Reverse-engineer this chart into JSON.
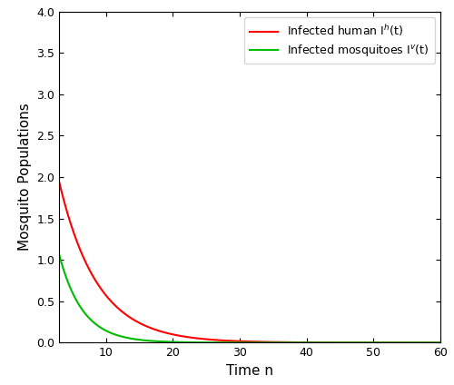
{
  "title": "",
  "xlabel": "Time n",
  "ylabel": "Mosquito Populations",
  "xlim": [
    3,
    60
  ],
  "ylim": [
    0,
    4
  ],
  "xticks": [
    10,
    20,
    30,
    40,
    50,
    60
  ],
  "yticks": [
    0,
    0.5,
    1.0,
    1.5,
    2.0,
    2.5,
    3.0,
    3.5,
    4.0
  ],
  "red_label": "Infected human I$^h$(t)",
  "green_label": "Infected mosquitoes I$^v$(t)",
  "red_color": "#ff0000",
  "green_color": "#00bb00",
  "red_initial": 1.95,
  "red_decay": 0.175,
  "green_initial": 1.07,
  "green_decay": 0.285,
  "n_points": 1000,
  "background_color": "#ffffff",
  "grid": false,
  "legend_loc": "upper right",
  "linewidth": 1.5,
  "figwidth": 5.0,
  "figheight": 4.24,
  "dpi": 100
}
